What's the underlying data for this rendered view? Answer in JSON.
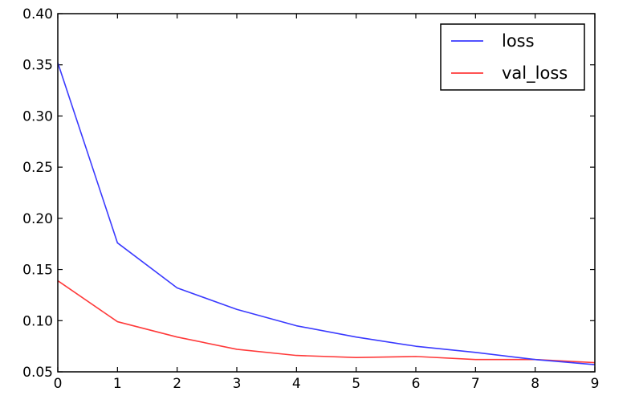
{
  "chart_data": {
    "type": "line",
    "title": "",
    "xlabel": "",
    "ylabel": "",
    "x": [
      0,
      1,
      2,
      3,
      4,
      5,
      6,
      7,
      8,
      9
    ],
    "xlim": [
      0,
      9
    ],
    "ylim": [
      0.05,
      0.4
    ],
    "x_ticks": [
      "0",
      "1",
      "2",
      "3",
      "4",
      "5",
      "6",
      "7",
      "8",
      "9"
    ],
    "y_ticks": [
      "0.05",
      "0.10",
      "0.15",
      "0.20",
      "0.25",
      "0.30",
      "0.35",
      "0.40"
    ],
    "grid": false,
    "legend_position": "top-right",
    "series": [
      {
        "name": "loss",
        "color": "#3a3aff",
        "values": [
          0.352,
          0.176,
          0.132,
          0.111,
          0.095,
          0.084,
          0.075,
          0.069,
          0.062,
          0.057
        ]
      },
      {
        "name": "val_loss",
        "color": "#ff3a3a",
        "values": [
          0.139,
          0.099,
          0.084,
          0.072,
          0.066,
          0.064,
          0.065,
          0.062,
          0.062,
          0.059
        ]
      }
    ]
  }
}
